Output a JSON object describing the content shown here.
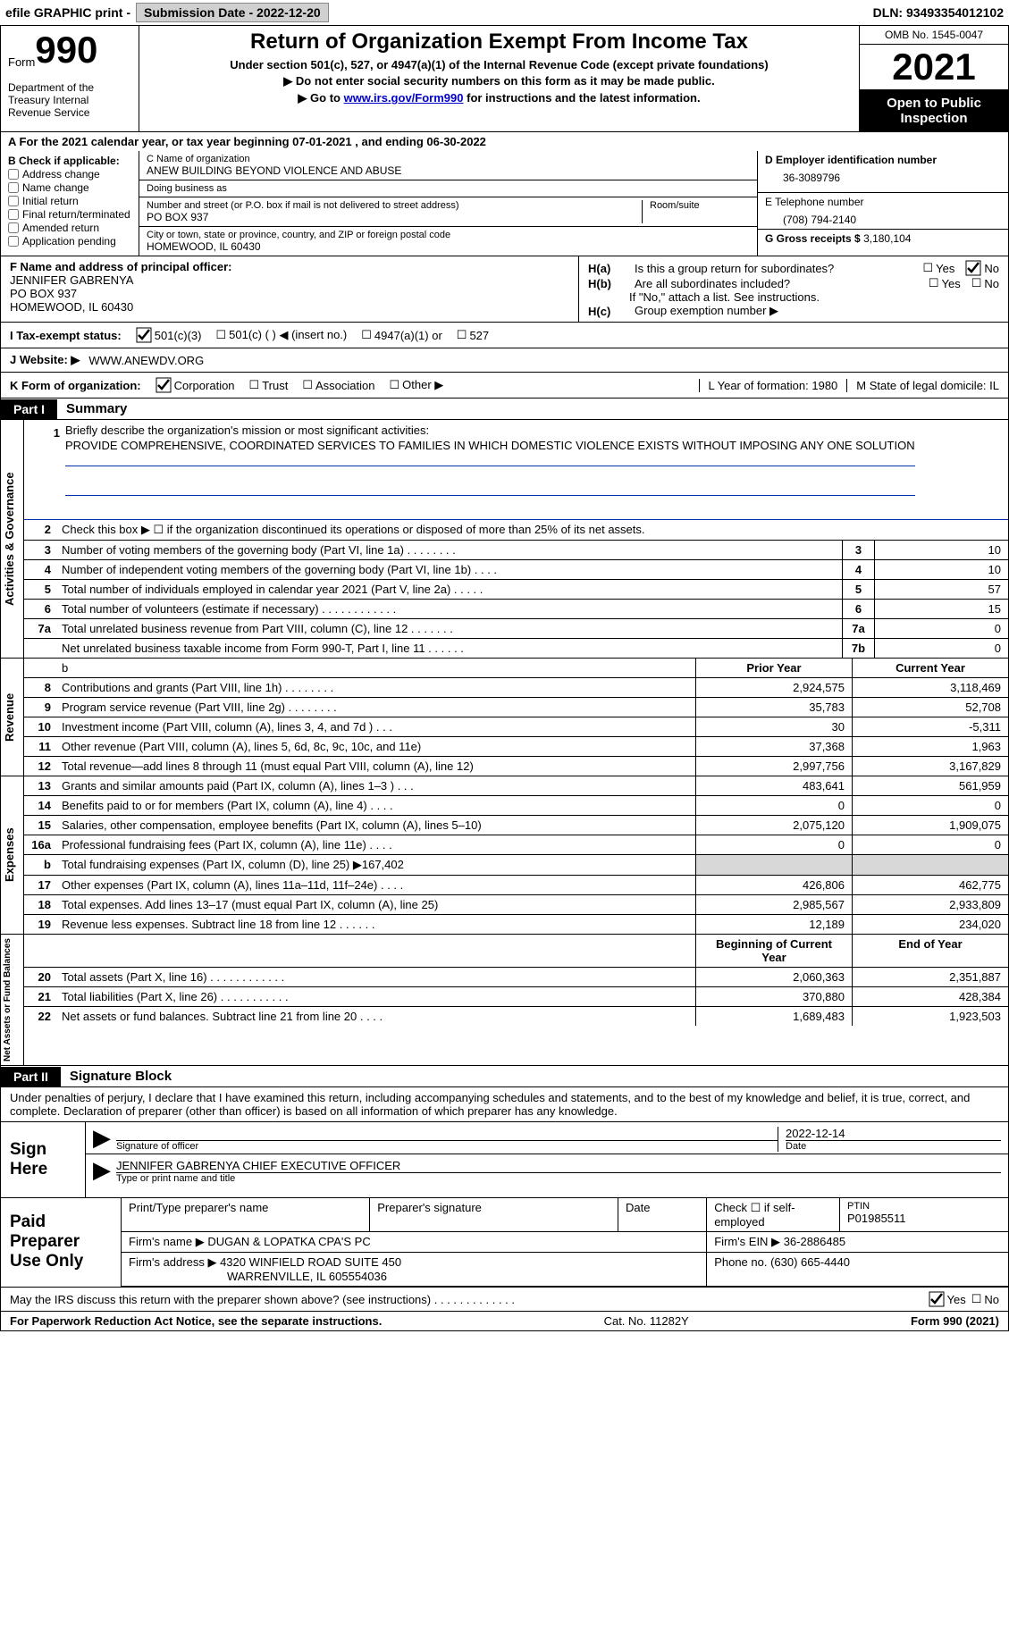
{
  "top_bar": {
    "efile": "efile GRAPHIC print -",
    "sub_date_label": "Submission Date - 2022-12-20",
    "dln_label": "DLN: 93493354012102"
  },
  "header": {
    "form_word": "Form",
    "form_number": "990",
    "dept": "Department of the Treasury Internal Revenue Service",
    "title": "Return of Organization Exempt From Income Tax",
    "sub1": "Under section 501(c), 527, or 4947(a)(1) of the Internal Revenue Code (except private foundations)",
    "sub2": "▶ Do not enter social security numbers on this form as it may be made public.",
    "sub3_a": "▶ Go to ",
    "sub3_link": "www.irs.gov/Form990",
    "sub3_b": " for instructions and the latest information.",
    "omb": "OMB No. 1545-0047",
    "year": "2021",
    "open_insp": "Open to Public Inspection"
  },
  "line_a": "A For the 2021 calendar year, or tax year beginning 07-01-2021   , and ending 06-30-2022",
  "col_b": {
    "title": "B Check if applicable:",
    "items": [
      "Address change",
      "Name change",
      "Initial return",
      "Final return/terminated",
      "Amended return",
      "Application pending"
    ]
  },
  "col_c": {
    "name_label": "C Name of organization",
    "name": "ANEW BUILDING BEYOND VIOLENCE AND ABUSE",
    "dba_label": "Doing business as",
    "dba": "",
    "street_label": "Number and street (or P.O. box if mail is not delivered to street address)",
    "street": "PO BOX 937",
    "room_label": "Room/suite",
    "city_label": "City or town, state or province, country, and ZIP or foreign postal code",
    "city": "HOMEWOOD, IL  60430"
  },
  "col_d": {
    "ein_label": "D Employer identification number",
    "ein": "36-3089796",
    "phone_label": "E Telephone number",
    "phone": "(708) 794-2140",
    "receipts_label": "G Gross receipts $",
    "receipts": "3,180,104"
  },
  "section_f": {
    "label": "F Name and address of principal officer:",
    "name": "JENNIFER GABRENYA",
    "street": "PO BOX 937",
    "city": "HOMEWOOD, IL  60430"
  },
  "section_h": {
    "ha_label": "H(a)",
    "ha_text": "Is this a group return for subordinates?",
    "hb_label": "H(b)",
    "hb_text": "Are all subordinates included?",
    "hb_note": "If \"No,\" attach a list. See instructions.",
    "hc_label": "H(c)",
    "hc_text": "Group exemption number ▶",
    "yes": "Yes",
    "no": "No"
  },
  "status": {
    "label": "I  Tax-exempt status:",
    "opt1": "501(c)(3)",
    "opt2": "501(c) (  ) ◀ (insert no.)",
    "opt3": "4947(a)(1) or",
    "opt4": "527"
  },
  "website": {
    "label": "J  Website: ▶",
    "value": "WWW.ANEWDV.ORG"
  },
  "form_org": {
    "k_label": "K Form of organization:",
    "opts": [
      "Corporation",
      "Trust",
      "Association",
      "Other ▶"
    ],
    "l_label": "L Year of formation: 1980",
    "m_label": "M State of legal domicile: IL"
  },
  "part_i": {
    "label": "Part I",
    "title": "Summary"
  },
  "mission": {
    "num": "1",
    "label": "Briefly describe the organization's mission or most significant activities:",
    "text": "PROVIDE COMPREHENSIVE, COORDINATED SERVICES TO FAMILIES IN WHICH DOMESTIC VIOLENCE EXISTS WITHOUT IMPOSING ANY ONE SOLUTION"
  },
  "lines_gov": [
    {
      "n": "2",
      "d": "Check this box ▶ ☐ if the organization discontinued its operations or disposed of more than 25% of its net assets.",
      "box": "",
      "val": ""
    },
    {
      "n": "3",
      "d": "Number of voting members of the governing body (Part VI, line 1a)   .    .    .    .    .    .    .    .",
      "box": "3",
      "val": "10"
    },
    {
      "n": "4",
      "d": "Number of independent voting members of the governing body (Part VI, line 1b)   .    .    .    .",
      "box": "4",
      "val": "10"
    },
    {
      "n": "5",
      "d": "Total number of individuals employed in calendar year 2021 (Part V, line 2a)   .    .    .    .    .",
      "box": "5",
      "val": "57"
    },
    {
      "n": "6",
      "d": "Total number of volunteers (estimate if necessary)   .    .    .    .    .    .    .    .    .    .    .    .",
      "box": "6",
      "val": "15"
    },
    {
      "n": "7a",
      "d": "Total unrelated business revenue from Part VIII, column (C), line 12   .    .    .    .    .    .    .",
      "box": "7a",
      "val": "0"
    },
    {
      "n": "",
      "d": "Net unrelated business taxable income from Form 990-T, Part I, line 11   .    .    .    .    .    .",
      "box": "7b",
      "val": "0"
    }
  ],
  "headers_fin": {
    "prior": "Prior Year",
    "current": "Current Year"
  },
  "lines_rev": [
    {
      "n": "8",
      "d": "Contributions and grants (Part VIII, line 1h)   .    .    .    .    .    .    .    .",
      "p": "2,924,575",
      "c": "3,118,469"
    },
    {
      "n": "9",
      "d": "Program service revenue (Part VIII, line 2g)   .    .    .    .    .    .    .    .",
      "p": "35,783",
      "c": "52,708"
    },
    {
      "n": "10",
      "d": "Investment income (Part VIII, column (A), lines 3, 4, and 7d )   .    .    .",
      "p": "30",
      "c": "-5,311"
    },
    {
      "n": "11",
      "d": "Other revenue (Part VIII, column (A), lines 5, 6d, 8c, 9c, 10c, and 11e)",
      "p": "37,368",
      "c": "1,963"
    },
    {
      "n": "12",
      "d": "Total revenue—add lines 8 through 11 (must equal Part VIII, column (A), line 12)",
      "p": "2,997,756",
      "c": "3,167,829"
    }
  ],
  "lines_exp": [
    {
      "n": "13",
      "d": "Grants and similar amounts paid (Part IX, column (A), lines 1–3 )   .    .    .",
      "p": "483,641",
      "c": "561,959"
    },
    {
      "n": "14",
      "d": "Benefits paid to or for members (Part IX, column (A), line 4)   .    .    .    .",
      "p": "0",
      "c": "0"
    },
    {
      "n": "15",
      "d": "Salaries, other compensation, employee benefits (Part IX, column (A), lines 5–10)",
      "p": "2,075,120",
      "c": "1,909,075"
    },
    {
      "n": "16a",
      "d": "Professional fundraising fees (Part IX, column (A), line 11e)   .    .    .    .",
      "p": "0",
      "c": "0"
    },
    {
      "n": "b",
      "d": "Total fundraising expenses (Part IX, column (D), line 25) ▶167,402",
      "p": "GREY",
      "c": "GREY"
    },
    {
      "n": "17",
      "d": "Other expenses (Part IX, column (A), lines 11a–11d, 11f–24e)   .    .    .    .",
      "p": "426,806",
      "c": "462,775"
    },
    {
      "n": "18",
      "d": "Total expenses. Add lines 13–17 (must equal Part IX, column (A), line 25)",
      "p": "2,985,567",
      "c": "2,933,809"
    },
    {
      "n": "19",
      "d": "Revenue less expenses. Subtract line 18 from line 12   .    .    .    .    .    .",
      "p": "12,189",
      "c": "234,020"
    }
  ],
  "headers_net": {
    "prior": "Beginning of Current Year",
    "current": "End of Year"
  },
  "lines_net": [
    {
      "n": "20",
      "d": "Total assets (Part X, line 16)   .    .    .    .    .    .    .    .    .    .    .    .",
      "p": "2,060,363",
      "c": "2,351,887"
    },
    {
      "n": "21",
      "d": "Total liabilities (Part X, line 26)   .    .    .    .    .    .    .    .    .    .    .",
      "p": "370,880",
      "c": "428,384"
    },
    {
      "n": "22",
      "d": "Net assets or fund balances. Subtract line 21 from line 20   .    .    .    .",
      "p": "1,689,483",
      "c": "1,923,503"
    }
  ],
  "vert_labels": {
    "gov": "Activities & Governance",
    "rev": "Revenue",
    "exp": "Expenses",
    "net": "Net Assets or Fund Balances"
  },
  "part_ii": {
    "label": "Part II",
    "title": "Signature Block"
  },
  "sig_declaration": "Under penalties of perjury, I declare that I have examined this return, including accompanying schedules and statements, and to the best of my knowledge and belief, it is true, correct, and complete. Declaration of preparer (other than officer) is based on all information of which preparer has any knowledge.",
  "sign_here": {
    "label": "Sign Here",
    "sig_of_officer": "Signature of officer",
    "date_val": "2022-12-14",
    "date_label": "Date",
    "name_title": "JENNIFER GABRENYA  CHIEF EXECUTIVE OFFICER",
    "type_label": "Type or print name and title"
  },
  "paid_prep": {
    "label": "Paid Preparer Use Only",
    "h1": "Print/Type preparer's name",
    "h2": "Preparer's signature",
    "h3": "Date",
    "h4_a": "Check ☐ if self-employed",
    "h4_b": "PTIN",
    "ptin": "P01985511",
    "firm_name_label": "Firm's name    ▶",
    "firm_name": "DUGAN & LOPATKA CPA'S PC",
    "firm_ein_label": "Firm's EIN ▶",
    "firm_ein": "36-2886485",
    "firm_addr_label": "Firm's address ▶",
    "firm_addr1": "4320 WINFIELD ROAD SUITE 450",
    "firm_addr2": "WARRENVILLE, IL  605554036",
    "phone_label": "Phone no.",
    "phone": "(630) 665-4440"
  },
  "discuss": {
    "text": "May the IRS discuss this return with the preparer shown above? (see instructions)   .    .    .    .    .    .    .    .    .    .    .    .    .",
    "yes": "Yes",
    "no": "No"
  },
  "footer": {
    "left": "For Paperwork Reduction Act Notice, see the separate instructions.",
    "mid": "Cat. No. 11282Y",
    "right": "Form 990 (2021)"
  }
}
